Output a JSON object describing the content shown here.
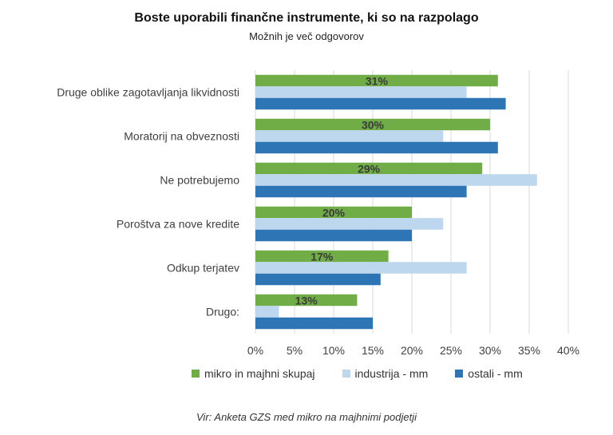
{
  "chart_data": {
    "type": "bar",
    "orientation": "horizontal",
    "title": "Boste uporabili finančne instrumente, ki so na razpolago",
    "subtitle": "Možnih je več odgovorov",
    "categories": [
      "Druge oblike zagotavljanja likvidnosti",
      "Moratorij na obveznosti",
      "Ne potrebujemo",
      "Poroštva za nove kredite",
      "Odkup terjatev",
      "Drugo:"
    ],
    "series": [
      {
        "name": "mikro in majhni skupaj",
        "color": "#70ad47",
        "values": [
          31,
          30,
          29,
          20,
          17,
          13
        ],
        "labels": [
          "31%",
          "30%",
          "29%",
          "20%",
          "17%",
          "13%"
        ]
      },
      {
        "name": "industrija - mm",
        "color": "#bdd7ee",
        "values": [
          27,
          24,
          36,
          24,
          27,
          3
        ]
      },
      {
        "name": "ostali - mm",
        "color": "#2e75b6",
        "values": [
          32,
          31,
          27,
          20,
          16,
          15
        ]
      }
    ],
    "xlim": [
      0,
      40
    ],
    "xticks": [
      "0%",
      "5%",
      "10%",
      "15%",
      "20%",
      "25%",
      "30%",
      "35%",
      "40%"
    ],
    "grid": true,
    "legend_position": "bottom"
  },
  "source": "Vir: Anketa GZS med mikro na majhnimi podjetji"
}
